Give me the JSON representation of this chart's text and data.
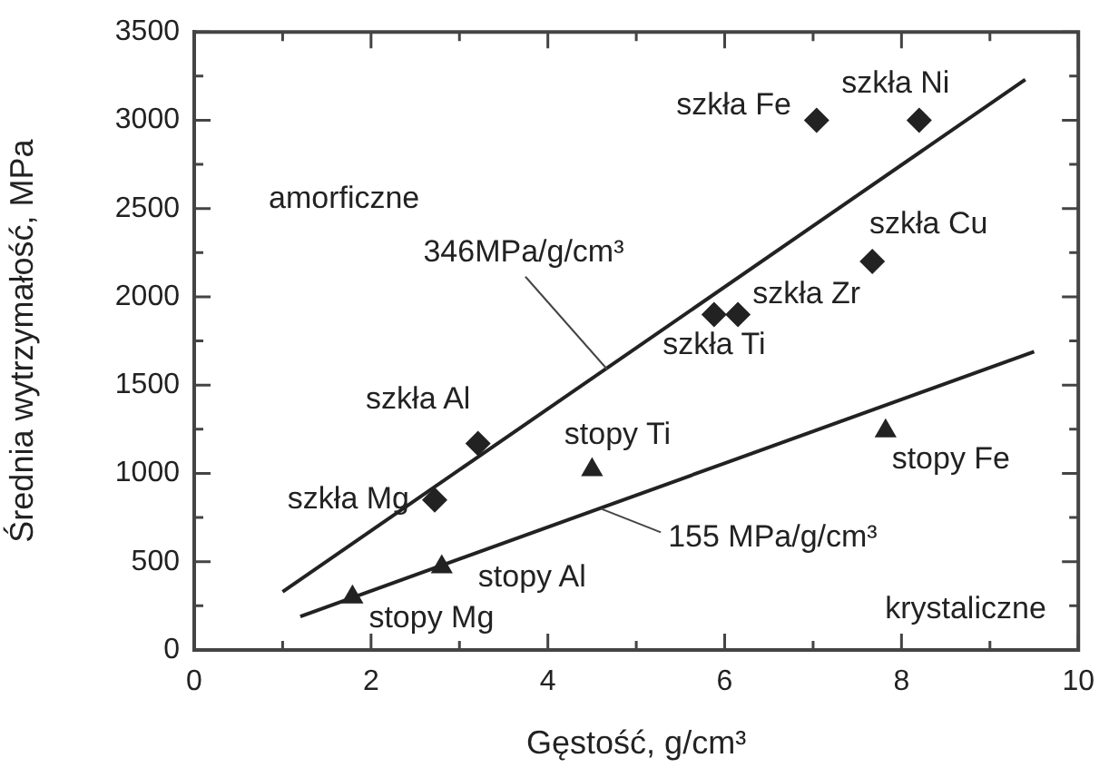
{
  "chart_data": {
    "type": "scatter",
    "xlabel": "Gęstość, g/cm³",
    "ylabel": "Średnia wytrzymałość, MPa",
    "xlim": [
      0,
      10
    ],
    "ylim": [
      0,
      3500
    ],
    "xticks": [
      0,
      {
        "value": 1,
        "label": null
      },
      2,
      {
        "value": 3,
        "label": null
      },
      4,
      {
        "value": 5,
        "label": null
      },
      6,
      {
        "value": 7,
        "label": null
      },
      8,
      {
        "value": 9,
        "label": null
      },
      10
    ],
    "yticks": [
      0,
      {
        "value": 250,
        "label": null
      },
      500,
      {
        "value": 750,
        "label": null
      },
      1000,
      {
        "value": 1250,
        "label": null
      },
      1500,
      {
        "value": 1750,
        "label": null
      },
      2000,
      {
        "value": 2250,
        "label": null
      },
      2500,
      {
        "value": 2750,
        "label": null
      },
      3000,
      {
        "value": 3250,
        "label": null
      },
      3500
    ],
    "grid": false,
    "legend": false,
    "series": [
      {
        "type": "line",
        "x": [
          1.0,
          9.4
        ],
        "values": [
          330,
          3230
        ],
        "color": "#222222",
        "marker": "none"
      },
      {
        "type": "line",
        "x": [
          1.2,
          9.5
        ],
        "values": [
          190,
          1690
        ],
        "color": "#222222",
        "marker": "none"
      },
      {
        "name": "szkła Mg",
        "x": [
          2.72
        ],
        "values": [
          850
        ],
        "color": "#222222",
        "marker": "diamond"
      },
      {
        "name": "szkła Al",
        "x": [
          3.21
        ],
        "values": [
          1170
        ],
        "color": "#222222",
        "marker": "diamond"
      },
      {
        "name": "szkła Fe",
        "x": [
          7.04
        ],
        "values": [
          3000
        ],
        "color": "#222222",
        "marker": "diamond"
      },
      {
        "name": "szkła Ni",
        "x": [
          8.2
        ],
        "values": [
          3000
        ],
        "color": "#222222",
        "marker": "diamond"
      },
      {
        "name": "szkła Cu",
        "x": [
          7.67
        ],
        "values": [
          2200
        ],
        "color": "#222222",
        "marker": "diamond"
      },
      {
        "name": "szkła Zr",
        "x": [
          6.15
        ],
        "values": [
          1900
        ],
        "color": "#222222",
        "marker": "diamond"
      },
      {
        "name": "szkła Ti",
        "x": [
          5.88
        ],
        "values": [
          1900
        ],
        "color": "#222222",
        "marker": "diamond"
      },
      {
        "name": "stopy Mg",
        "x": [
          1.79
        ],
        "values": [
          300
        ],
        "color": "#222222",
        "marker": "triangle"
      },
      {
        "name": "stopy Al",
        "x": [
          2.8
        ],
        "values": [
          470
        ],
        "color": "#222222",
        "marker": "triangle"
      },
      {
        "name": "stopy Ti",
        "x": [
          4.5
        ],
        "values": [
          1020
        ],
        "color": "#222222",
        "marker": "triangle"
      },
      {
        "name": "stopy Fe",
        "x": [
          7.82
        ],
        "values": [
          1240
        ],
        "color": "#222222",
        "marker": "triangle"
      }
    ],
    "annotations": [
      "amorficzne",
      "krystaliczne",
      {
        "text": "346MPa/g/cm³",
        "x": 4.67,
        "y": 1590
      },
      {
        "text": "155 MPa/g/cm³",
        "x": 4.6,
        "y": 800
      }
    ]
  }
}
